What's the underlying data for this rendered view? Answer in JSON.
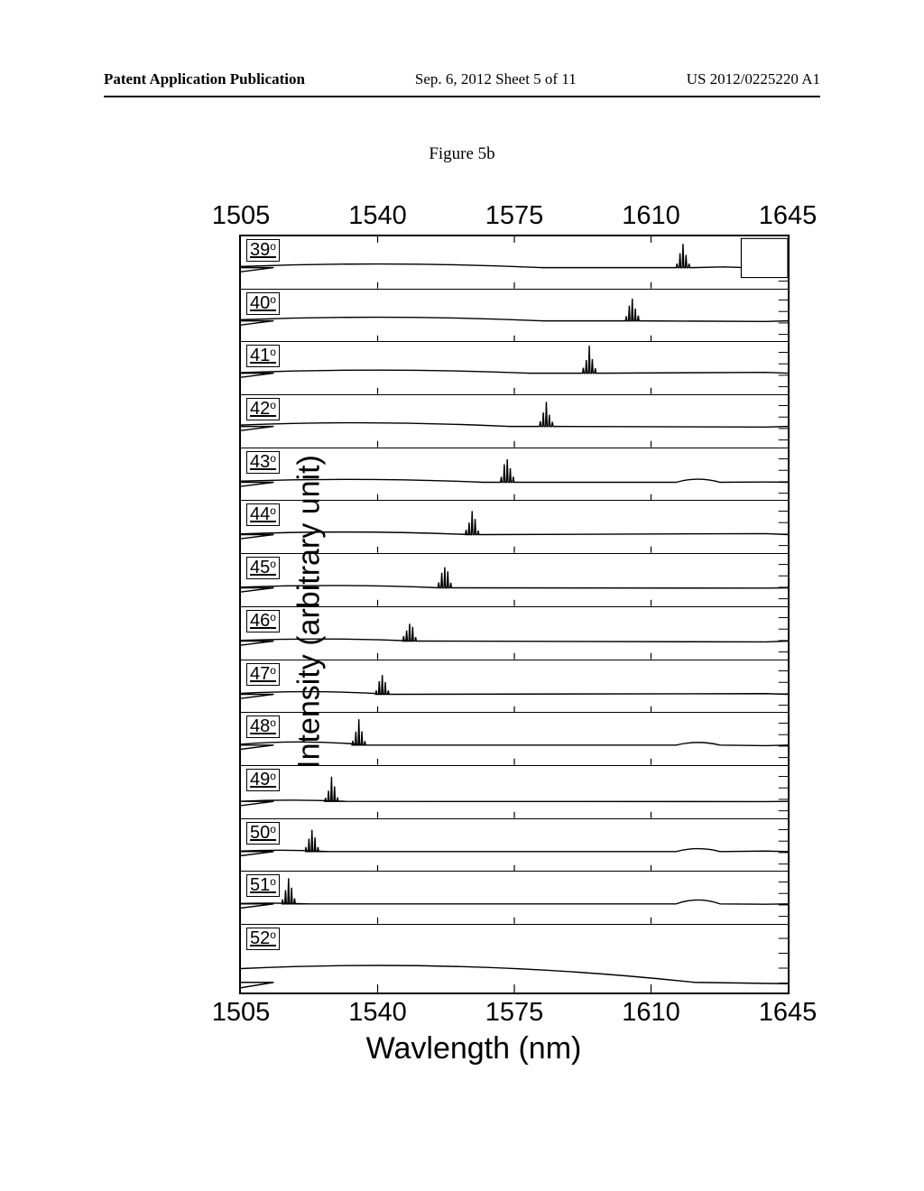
{
  "header": {
    "left": "Patent Application Publication",
    "center": "Sep. 6, 2012  Sheet 5 of 11",
    "right": "US 2012/0225220 A1"
  },
  "figure_caption": "Figure 5b",
  "chart": {
    "type": "stacked-line-spectra",
    "ylabel": "Intensity (arbitrary unit)",
    "xlabel": "Wavlength (nm)",
    "xlim": [
      1505,
      1645
    ],
    "xticks": [
      1505,
      1540,
      1575,
      1610,
      1645
    ],
    "tick_fontsize": 29,
    "label_fontsize": 34,
    "border_color": "#000000",
    "background_color": "#ffffff",
    "line_color": "#000000",
    "line_width": 1.4,
    "panels": [
      {
        "label": "39°",
        "peak_x": 1618,
        "baseline_y": 0.6,
        "peak_h": 0.42,
        "bump_x": 1540,
        "bump_w": 60,
        "bump_h": 0.14,
        "right_cut": true
      },
      {
        "label": "40°",
        "peak_x": 1605,
        "baseline_y": 0.6,
        "peak_h": 0.48,
        "bump_x": 1540,
        "bump_w": 60,
        "bump_h": 0.14
      },
      {
        "label": "41°",
        "peak_x": 1594,
        "baseline_y": 0.6,
        "peak_h": 0.5,
        "bump_x": 1540,
        "bump_w": 55,
        "bump_h": 0.12
      },
      {
        "label": "42°",
        "peak_x": 1583,
        "baseline_y": 0.6,
        "peak_h": 0.48,
        "bump_x": 1535,
        "bump_w": 55,
        "bump_h": 0.14
      },
      {
        "label": "43°",
        "peak_x": 1573,
        "baseline_y": 0.65,
        "peak_h": 0.55,
        "bump_x": 1532,
        "bump_w": 50,
        "bump_h": 0.11,
        "right_bump": 0.12
      },
      {
        "label": "44°",
        "peak_x": 1564,
        "baseline_y": 0.65,
        "peak_h": 0.45,
        "bump_x": 1532,
        "bump_w": 45,
        "bump_h": 0.1
      },
      {
        "label": "45°",
        "peak_x": 1557,
        "baseline_y": 0.65,
        "peak_h": 0.52,
        "bump_x": 1528,
        "bump_w": 40,
        "bump_h": 0.09
      },
      {
        "label": "46°",
        "peak_x": 1548,
        "baseline_y": 0.65,
        "peak_h": 0.42,
        "bump_x": 1525,
        "bump_w": 35,
        "bump_h": 0.08
      },
      {
        "label": "47°",
        "peak_x": 1541,
        "baseline_y": 0.65,
        "peak_h": 0.42,
        "bump_x": 1522,
        "bump_w": 30,
        "bump_h": 0.1
      },
      {
        "label": "48°",
        "peak_x": 1535,
        "baseline_y": 0.62,
        "peak_h": 0.48,
        "bump_x": 1520,
        "bump_w": 25,
        "bump_h": 0.12,
        "right_bump": 0.1
      },
      {
        "label": "49°",
        "peak_x": 1528,
        "baseline_y": 0.68,
        "peak_h": 0.45,
        "bump_x": 1518,
        "bump_w": 20,
        "bump_h": 0.05
      },
      {
        "label": "50°",
        "peak_x": 1523,
        "baseline_y": 0.62,
        "peak_h": 0.42,
        "bump_x": 1515,
        "bump_w": 18,
        "bump_h": 0.05,
        "right_bump": 0.11
      },
      {
        "label": "51°",
        "peak_x": 1517,
        "baseline_y": 0.62,
        "peak_h": 0.48,
        "bump_x": 1512,
        "bump_w": 15,
        "bump_h": 0.03,
        "right_bump": 0.15
      },
      {
        "label": "52°",
        "peak_x": 0,
        "baseline_y": 0.85,
        "peak_h": 0,
        "broad": true,
        "broad_center": 1540,
        "broad_w": 90,
        "broad_h": 0.5
      }
    ]
  }
}
